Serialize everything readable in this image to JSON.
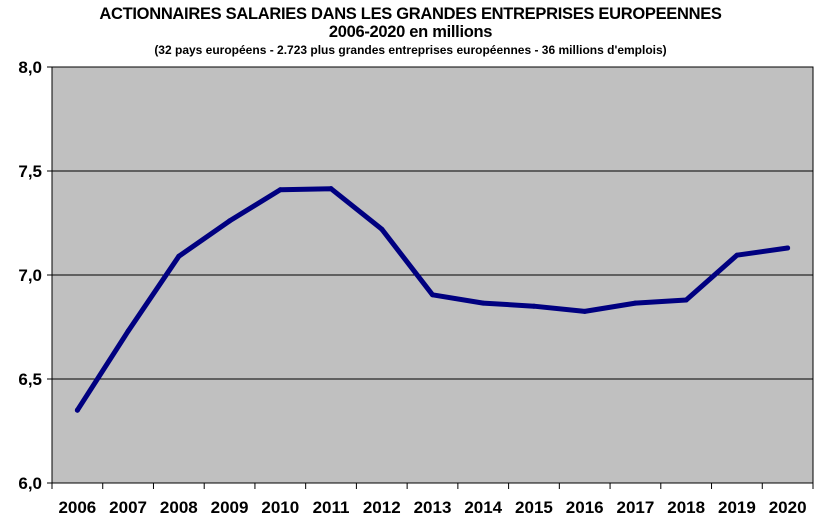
{
  "chart_data": {
    "type": "line",
    "title": "ACTIONNAIRES SALARIES DANS LES GRANDES ENTREPRISES EUROPEENNES",
    "subtitle": "2006-2020 en millions",
    "note": "(32 pays européens  - 2.723 plus grandes entreprises  européennes  - 36 millions d'emplois)",
    "xlabel": "",
    "ylabel": "",
    "categories": [
      "2006",
      "2007",
      "2008",
      "2009",
      "2010",
      "2011",
      "2012",
      "2013",
      "2014",
      "2015",
      "2016",
      "2017",
      "2018",
      "2019",
      "2020"
    ],
    "series": [
      {
        "values": [
          6.35,
          6.73,
          7.09,
          7.26,
          7.41,
          7.415,
          7.22,
          6.905,
          6.865,
          6.85,
          6.825,
          6.865,
          6.88,
          7.095,
          7.13
        ]
      }
    ],
    "ylim": [
      6.0,
      8.0
    ],
    "yticks": [
      "6,0",
      "6,5",
      "7,0",
      "7,5",
      "8,0"
    ],
    "grid": true,
    "legend": "none",
    "colors": {
      "plot_background": "#c0c0c0",
      "line": "#000080",
      "gridline": "#000000"
    }
  }
}
